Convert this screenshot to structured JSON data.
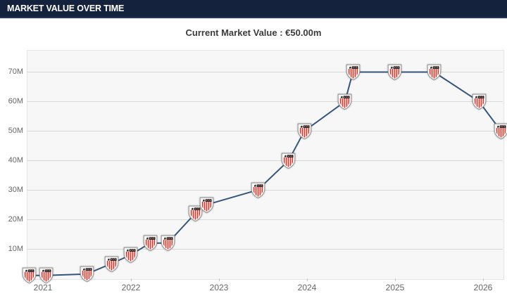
{
  "header": {
    "title": "MARKET VALUE OVER TIME"
  },
  "subtitle": {
    "text": "Current Market Value : €50.00m"
  },
  "colors": {
    "header_bg": "#15223d",
    "line": "#35567c",
    "plot_bg": "#f7f7f7",
    "grid": "#d9d9d9",
    "axis_text": "#666666",
    "crest_red": "#d2372c",
    "crest_dark": "#1c1c1c"
  },
  "chart_data": {
    "type": "line",
    "title": "MARKET VALUE OVER TIME",
    "subtitle": "Current Market Value : €50.00m",
    "series": [
      {
        "name": "Market value",
        "marker": "athletic-club-bilbao-crest",
        "points": [
          {
            "x": 2020.85,
            "value_millions": 1
          },
          {
            "x": 2021.04,
            "value_millions": 1
          },
          {
            "x": 2021.5,
            "value_millions": 1.5
          },
          {
            "x": 2021.78,
            "value_millions": 5
          },
          {
            "x": 2022.0,
            "value_millions": 8
          },
          {
            "x": 2022.22,
            "value_millions": 12
          },
          {
            "x": 2022.42,
            "value_millions": 12
          },
          {
            "x": 2022.73,
            "value_millions": 22
          },
          {
            "x": 2022.86,
            "value_millions": 25
          },
          {
            "x": 2023.44,
            "value_millions": 30
          },
          {
            "x": 2023.79,
            "value_millions": 40
          },
          {
            "x": 2023.97,
            "value_millions": 50
          },
          {
            "x": 2024.43,
            "value_millions": 60
          },
          {
            "x": 2024.52,
            "value_millions": 70
          },
          {
            "x": 2024.99,
            "value_millions": 70
          },
          {
            "x": 2025.44,
            "value_millions": 70
          },
          {
            "x": 2025.95,
            "value_millions": 60
          },
          {
            "x": 2026.2,
            "value_millions": 50
          }
        ]
      }
    ],
    "xticks": [
      2021,
      2022,
      2023,
      2024,
      2025,
      2026
    ],
    "ytick_labels": [
      "10M",
      "20M",
      "30M",
      "40M",
      "50M",
      "60M",
      "70M"
    ],
    "ytick_values_millions": [
      10,
      20,
      30,
      40,
      50,
      60,
      70
    ],
    "xlim": [
      2020.82,
      2026.22
    ],
    "ylim_millions": [
      0,
      77.5
    ],
    "grid": true,
    "legend": false,
    "xlabel": "",
    "ylabel": ""
  }
}
